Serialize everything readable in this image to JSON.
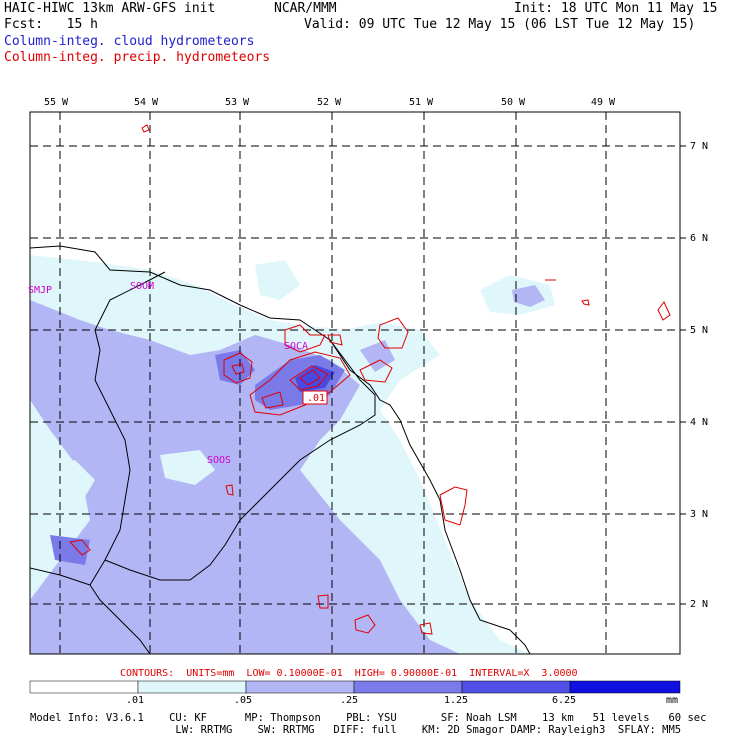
{
  "header": {
    "model_title": "HAIC-HIWC 13km ARW-GFS init",
    "org": "NCAR/MMM",
    "init": "Init: 18 UTC Mon 11 May 15",
    "fcst": "Fcst:   15 h",
    "valid": "Valid: 09 UTC Tue 12 May 15 (06 LST Tue 12 May 15)",
    "field1": "Column-integ. cloud hydrometeors",
    "field2": "Column-integ. precip. hydrometeors"
  },
  "map": {
    "lon_labels": [
      "55 W",
      "54 W",
      "53 W",
      "52 W",
      "51 W",
      "50 W",
      "49 W"
    ],
    "lat_labels": [
      "7 N",
      "6 N",
      "5 N",
      "4 N",
      "3 N",
      "2 N"
    ],
    "stations": [
      "SMJP",
      "SOOM",
      "SOCA",
      "SOOS"
    ],
    "contour_label": ".01",
    "colors": {
      "level1": "#dff6fb",
      "level2": "#b3b6f5",
      "level3": "#7a7ae8",
      "level4": "#3a3ae0",
      "contour": "#e00000",
      "station": "#d000d0"
    }
  },
  "contours_note": "CONTOURS:  UNITS=mm  LOW= 0.10000E-01  HIGH= 0.90000E-01  INTERVAL=X  3.0000",
  "colorbar": {
    "ticks": [
      ".01",
      ".05",
      ".25",
      "1.25",
      "6.25"
    ],
    "units": "mm",
    "colors": [
      "#ffffff",
      "#dff6fb",
      "#b3b6f5",
      "#7a7ae8",
      "#5050e6",
      "#1010e0"
    ]
  },
  "model_info": {
    "line1": "Model Info: V3.6.1    CU: KF      MP: Thompson    PBL: YSU       SF: Noah LSM    13 km   51 levels   60 sec",
    "line2": "                       LW: RRTMG    SW: RRTMG   DIFF: full    KM: 2D Smagor DAMP: Rayleigh3  SFLAY: MM5"
  }
}
